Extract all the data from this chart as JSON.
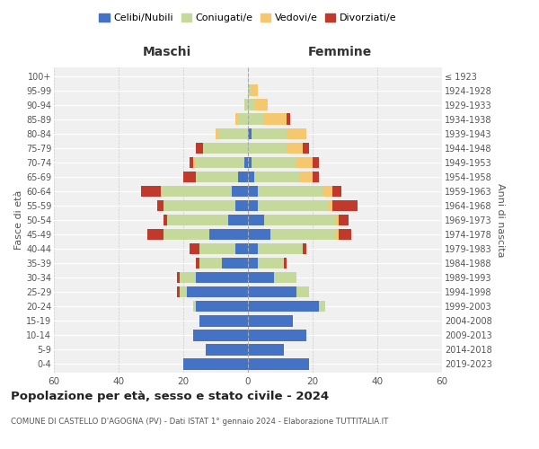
{
  "age_groups": [
    "0-4",
    "5-9",
    "10-14",
    "15-19",
    "20-24",
    "25-29",
    "30-34",
    "35-39",
    "40-44",
    "45-49",
    "50-54",
    "55-59",
    "60-64",
    "65-69",
    "70-74",
    "75-79",
    "80-84",
    "85-89",
    "90-94",
    "95-99",
    "100+"
  ],
  "birth_years": [
    "2019-2023",
    "2014-2018",
    "2009-2013",
    "2004-2008",
    "1999-2003",
    "1994-1998",
    "1989-1993",
    "1984-1988",
    "1979-1983",
    "1974-1978",
    "1969-1973",
    "1964-1968",
    "1959-1963",
    "1954-1958",
    "1949-1953",
    "1944-1948",
    "1939-1943",
    "1934-1938",
    "1929-1933",
    "1924-1928",
    "≤ 1923"
  ],
  "maschi": {
    "celibi": [
      20,
      13,
      17,
      15,
      16,
      19,
      16,
      8,
      4,
      12,
      6,
      4,
      5,
      3,
      1,
      0,
      0,
      0,
      0,
      0,
      0
    ],
    "coniugati": [
      0,
      0,
      0,
      0,
      1,
      2,
      5,
      7,
      11,
      14,
      19,
      22,
      22,
      13,
      15,
      14,
      9,
      3,
      1,
      0,
      0
    ],
    "vedovi": [
      0,
      0,
      0,
      0,
      0,
      0,
      0,
      0,
      0,
      0,
      0,
      0,
      0,
      0,
      1,
      0,
      1,
      1,
      0,
      0,
      0
    ],
    "divorziati": [
      0,
      0,
      0,
      0,
      0,
      1,
      1,
      1,
      3,
      5,
      1,
      2,
      6,
      4,
      1,
      2,
      0,
      0,
      0,
      0,
      0
    ]
  },
  "femmine": {
    "nubili": [
      19,
      11,
      18,
      14,
      22,
      15,
      8,
      3,
      3,
      7,
      5,
      3,
      3,
      2,
      1,
      0,
      1,
      0,
      0,
      0,
      0
    ],
    "coniugate": [
      0,
      0,
      0,
      0,
      2,
      4,
      7,
      8,
      14,
      20,
      22,
      22,
      20,
      14,
      14,
      12,
      11,
      5,
      2,
      1,
      0
    ],
    "vedove": [
      0,
      0,
      0,
      0,
      0,
      0,
      0,
      0,
      0,
      1,
      1,
      1,
      3,
      4,
      5,
      5,
      6,
      7,
      4,
      2,
      0
    ],
    "divorziate": [
      0,
      0,
      0,
      0,
      0,
      0,
      0,
      1,
      1,
      4,
      3,
      8,
      3,
      2,
      2,
      2,
      0,
      1,
      0,
      0,
      0
    ]
  },
  "colors": {
    "celibi": "#4472C4",
    "coniugati": "#C5D99A",
    "vedovi": "#F5C76E",
    "divorziati": "#C0392B"
  },
  "title": "Popolazione per età, sesso e stato civile - 2024",
  "subtitle": "COMUNE DI CASTELLO D'AGOGNA (PV) - Dati ISTAT 1° gennaio 2024 - Elaborazione TUTTITALIA.IT",
  "xlabel_left": "Maschi",
  "xlabel_right": "Femmine",
  "ylabel_left": "Fasce di età",
  "ylabel_right": "Anni di nascita",
  "xlim": 60,
  "legend_labels": [
    "Celibi/Nubili",
    "Coniugati/e",
    "Vedovi/e",
    "Divorziati/e"
  ],
  "background_color": "#ffffff",
  "plot_bg_color": "#f0f0f0",
  "grid_color": "#ffffff"
}
